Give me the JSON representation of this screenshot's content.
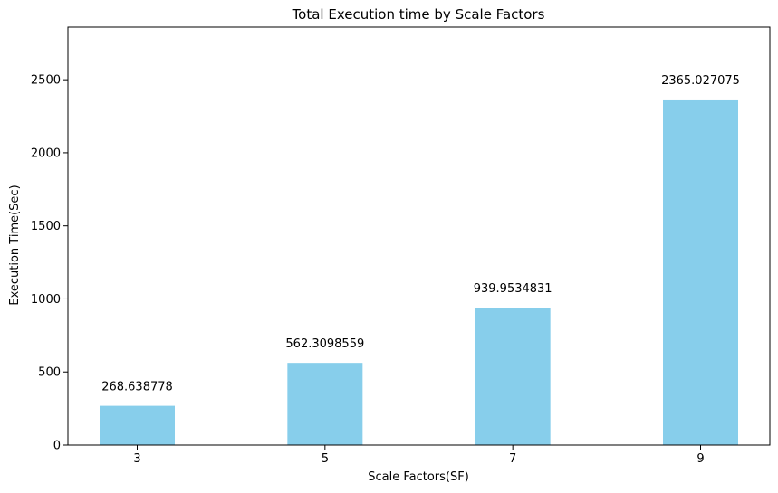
{
  "chart_data": {
    "type": "bar",
    "title": "Total Execution time by Scale Factors",
    "xlabel": "Scale Factors(SF)",
    "ylabel": "Execution Time(Sec)",
    "categories": [
      "3",
      "5",
      "7",
      "9"
    ],
    "values": [
      268.638778,
      562.3098559,
      939.9534831,
      2365.027075
    ],
    "data_labels": [
      "268.638778",
      "562.3098559",
      "939.9534831",
      "2365.027075"
    ],
    "ylim": [
      0,
      2860
    ],
    "yticks": [
      0,
      500,
      1000,
      1500,
      2000,
      2500
    ],
    "ytick_labels": [
      "0",
      "500",
      "1000",
      "1500",
      "2000",
      "2500"
    ],
    "bar_color": "#87ceeb",
    "grid": false,
    "legend": "none"
  }
}
